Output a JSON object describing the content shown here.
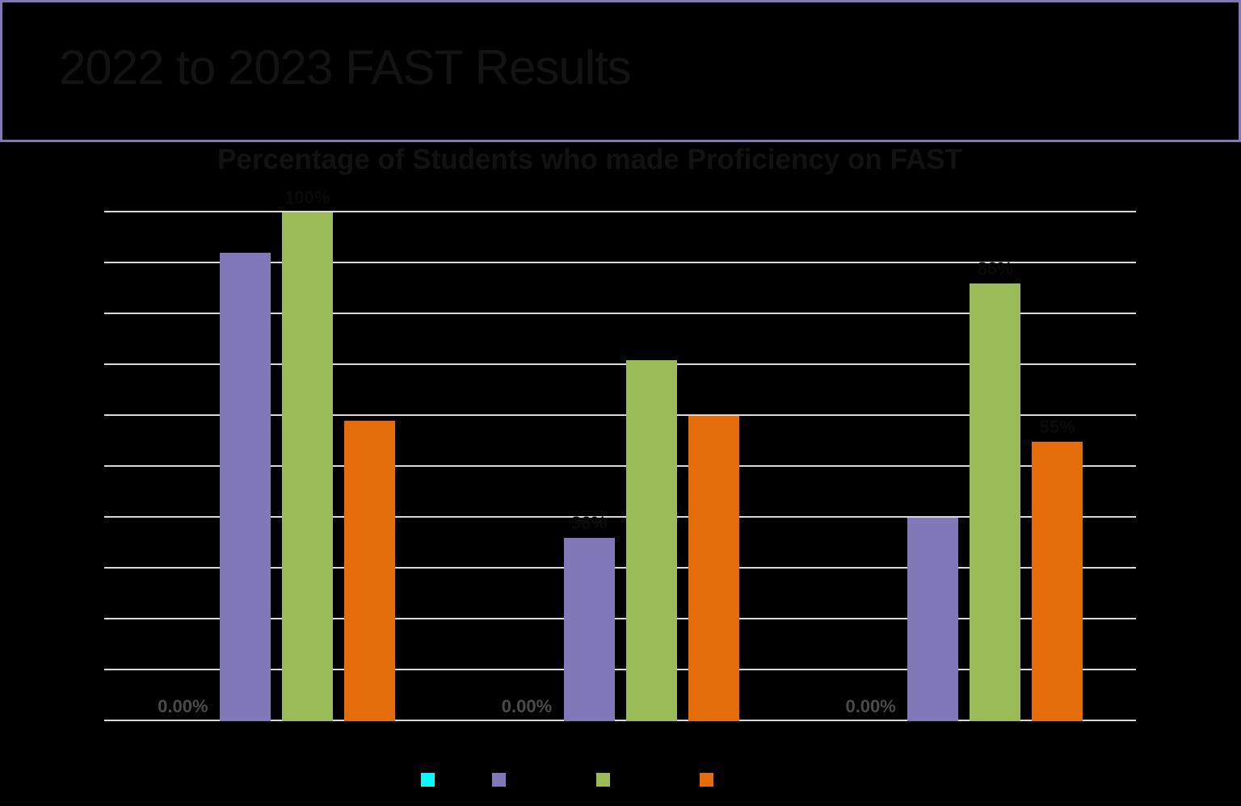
{
  "header": {
    "title": "2022 to 2023 FAST Results",
    "border_color": "#8078b8"
  },
  "chart_data": {
    "type": "bar",
    "title": "Percentage of Students who made Proficiency on FAST",
    "xlabel": "",
    "ylabel": "",
    "ylim": [
      0,
      100
    ],
    "grid": true,
    "gridlines": 11,
    "legend_position": "bottom",
    "categories": [
      "",
      "",
      ""
    ],
    "series": [
      {
        "name": "",
        "color": "#00ffff",
        "values": [
          0,
          0,
          0
        ],
        "labels": [
          "0.00%",
          "0.00%",
          "0.00%"
        ]
      },
      {
        "name": "",
        "color": "#8078b8",
        "values": [
          92,
          36,
          40
        ],
        "labels": [
          "",
          "36%",
          ""
        ]
      },
      {
        "name": "",
        "color": "#9bbb59",
        "values": [
          100,
          71,
          86
        ],
        "labels": [
          "100%",
          "",
          "86%"
        ]
      },
      {
        "name": "",
        "color": "#e46c0a",
        "values": [
          59,
          60,
          55
        ],
        "labels": [
          "",
          "",
          "55%"
        ]
      }
    ]
  },
  "legend": {
    "items": [
      {
        "color": "#00ffff",
        "label": "",
        "x": 521
      },
      {
        "color": "#8078b8",
        "label": "",
        "x": 609
      },
      {
        "color": "#9bbb59",
        "label": "",
        "x": 738
      },
      {
        "color": "#e46c0a",
        "label": "",
        "x": 866
      }
    ]
  }
}
